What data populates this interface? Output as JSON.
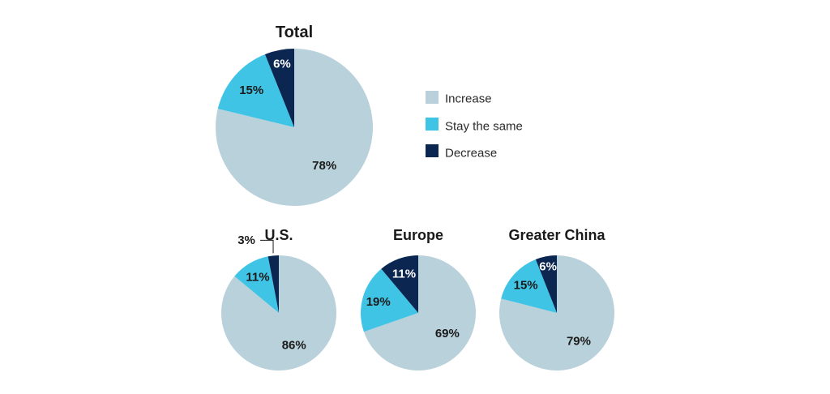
{
  "colors": {
    "Increase": "#b9d1da",
    "Stay the same": "#3fc4e6",
    "Decrease": "#0b2650"
  },
  "legend": [
    "Increase",
    "Stay the same",
    "Decrease"
  ],
  "chart_data": [
    {
      "type": "pie",
      "title": "Total",
      "categories": [
        "Increase",
        "Stay the same",
        "Decrease"
      ],
      "values": [
        78,
        15,
        6
      ],
      "labels": [
        "78%",
        "15%",
        "6%"
      ]
    },
    {
      "type": "pie",
      "title": "U.S.",
      "categories": [
        "Increase",
        "Stay the same",
        "Decrease"
      ],
      "values": [
        86,
        11,
        3
      ],
      "labels": [
        "86%",
        "11%",
        "3%"
      ]
    },
    {
      "type": "pie",
      "title": "Europe",
      "categories": [
        "Increase",
        "Stay the same",
        "Decrease"
      ],
      "values": [
        69,
        19,
        11
      ],
      "labels": [
        "69%",
        "19%",
        "11%"
      ]
    },
    {
      "type": "pie",
      "title": "Greater China",
      "categories": [
        "Increase",
        "Stay the same",
        "Decrease"
      ],
      "values": [
        79,
        15,
        6
      ],
      "labels": [
        "79%",
        "15%",
        "6%"
      ]
    }
  ]
}
